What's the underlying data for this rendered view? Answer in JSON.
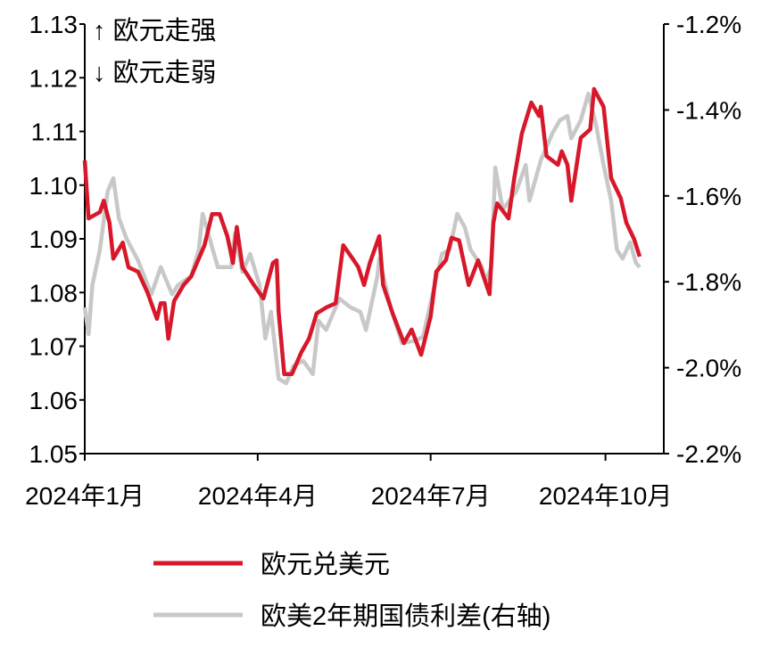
{
  "chart_data": {
    "type": "line",
    "title": "",
    "annotations": [
      "↑ 欧元走强",
      "↓ 欧元走弱"
    ],
    "x_ticks": [
      {
        "date": "2024-01-01",
        "label": "2024年1月"
      },
      {
        "date": "2024-04-01",
        "label": "2024年4月"
      },
      {
        "date": "2024-07-01",
        "label": "2024年7月"
      },
      {
        "date": "2024-10-01",
        "label": "2024年10月"
      }
    ],
    "xlim": [
      "2024-01-01",
      "2024-11-01"
    ],
    "y_left": {
      "lim": [
        1.05,
        1.13
      ],
      "ticks": [
        "1.05",
        "1.06",
        "1.07",
        "1.08",
        "1.09",
        "1.10",
        "1.11",
        "1.12",
        "1.13"
      ]
    },
    "y_right": {
      "lim": [
        -2.2,
        -1.2
      ],
      "unit": "%",
      "ticks": [
        "-2.2%",
        "-2.0%",
        "-1.8%",
        "-1.6%",
        "-1.4%",
        "-1.2%"
      ]
    },
    "grid": false,
    "legend_placement": "bottom",
    "series": [
      {
        "name": "欧元兑美元",
        "axis": "left",
        "color": "#d7182a",
        "points": [
          [
            "2024-01-01",
            1.1046
          ],
          [
            "2024-01-03",
            1.0938
          ],
          [
            "2024-01-09",
            1.095
          ],
          [
            "2024-01-11",
            1.0971
          ],
          [
            "2024-01-14",
            1.093
          ],
          [
            "2024-01-16",
            1.0863
          ],
          [
            "2024-01-21",
            1.0893
          ],
          [
            "2024-01-24",
            1.0847
          ],
          [
            "2024-01-29",
            1.0839
          ],
          [
            "2024-02-03",
            1.08
          ],
          [
            "2024-02-08",
            1.0751
          ],
          [
            "2024-02-10",
            1.078
          ],
          [
            "2024-02-12",
            1.078
          ],
          [
            "2024-02-14",
            1.0714
          ],
          [
            "2024-02-17",
            1.0784
          ],
          [
            "2024-02-22",
            1.0814
          ],
          [
            "2024-02-26",
            1.083
          ],
          [
            "2024-02-29",
            1.0855
          ],
          [
            "2024-03-04",
            1.0888
          ],
          [
            "2024-03-08",
            1.0946
          ],
          [
            "2024-03-12",
            1.0946
          ],
          [
            "2024-03-16",
            1.0905
          ],
          [
            "2024-03-19",
            1.0855
          ],
          [
            "2024-03-21",
            1.0922
          ],
          [
            "2024-03-24",
            1.0847
          ],
          [
            "2024-03-30",
            1.0814
          ],
          [
            "2024-04-04",
            1.0789
          ],
          [
            "2024-04-09",
            1.0855
          ],
          [
            "2024-04-11",
            1.086
          ],
          [
            "2024-04-12",
            1.0764
          ],
          [
            "2024-04-15",
            1.0648
          ],
          [
            "2024-04-19",
            1.0648
          ],
          [
            "2024-04-24",
            1.0689
          ],
          [
            "2024-04-28",
            1.0714
          ],
          [
            "2024-05-02",
            1.0761
          ],
          [
            "2024-05-07",
            1.0772
          ],
          [
            "2024-05-12",
            1.078
          ],
          [
            "2024-05-14",
            1.0834
          ],
          [
            "2024-05-16",
            1.0888
          ],
          [
            "2024-05-21",
            1.0863
          ],
          [
            "2024-05-24",
            1.0847
          ],
          [
            "2024-05-27",
            1.0814
          ],
          [
            "2024-05-30",
            1.0855
          ],
          [
            "2024-06-04",
            1.0905
          ],
          [
            "2024-06-06",
            1.0814
          ],
          [
            "2024-06-11",
            1.0761
          ],
          [
            "2024-06-17",
            1.0706
          ],
          [
            "2024-06-21",
            1.0731
          ],
          [
            "2024-06-26",
            1.0684
          ],
          [
            "2024-07-01",
            1.0756
          ],
          [
            "2024-07-04",
            1.0839
          ],
          [
            "2024-07-09",
            1.086
          ],
          [
            "2024-07-12",
            1.0902
          ],
          [
            "2024-07-16",
            1.0897
          ],
          [
            "2024-07-21",
            1.0814
          ],
          [
            "2024-07-26",
            1.086
          ],
          [
            "2024-08-01",
            1.0797
          ],
          [
            "2024-08-03",
            1.093
          ],
          [
            "2024-08-05",
            1.0966
          ],
          [
            "2024-08-11",
            1.0938
          ],
          [
            "2024-08-14",
            1.1013
          ],
          [
            "2024-08-18",
            1.1096
          ],
          [
            "2024-08-23",
            1.1154
          ],
          [
            "2024-08-27",
            1.1129
          ],
          [
            "2024-08-28",
            1.1146
          ],
          [
            "2024-08-31",
            1.1054
          ],
          [
            "2024-09-06",
            1.1038
          ],
          [
            "2024-09-08",
            1.1063
          ],
          [
            "2024-09-11",
            1.1038
          ],
          [
            "2024-09-13",
            1.0971
          ],
          [
            "2024-09-18",
            1.1088
          ],
          [
            "2024-09-23",
            1.1104
          ],
          [
            "2024-09-25",
            1.1179
          ],
          [
            "2024-09-30",
            1.1146
          ],
          [
            "2024-10-04",
            1.1013
          ],
          [
            "2024-10-09",
            1.0976
          ],
          [
            "2024-10-12",
            1.093
          ],
          [
            "2024-10-16",
            1.09
          ],
          [
            "2024-10-19",
            1.0867
          ]
        ]
      },
      {
        "name": "欧美2年期国债利差(右轴)",
        "axis": "right",
        "color": "#c8c8c8",
        "points": [
          [
            "2024-01-01",
            -1.86
          ],
          [
            "2024-01-03",
            -1.922
          ],
          [
            "2024-01-05",
            -1.808
          ],
          [
            "2024-01-09",
            -1.725
          ],
          [
            "2024-01-13",
            -1.59
          ],
          [
            "2024-01-16",
            -1.559
          ],
          [
            "2024-01-19",
            -1.652
          ],
          [
            "2024-01-23",
            -1.7
          ],
          [
            "2024-01-29",
            -1.75
          ],
          [
            "2024-02-05",
            -1.829
          ],
          [
            "2024-02-10",
            -1.766
          ],
          [
            "2024-02-16",
            -1.829
          ],
          [
            "2024-02-19",
            -1.808
          ],
          [
            "2024-02-26",
            -1.787
          ],
          [
            "2024-03-01",
            -1.725
          ],
          [
            "2024-03-03",
            -1.642
          ],
          [
            "2024-03-07",
            -1.704
          ],
          [
            "2024-03-11",
            -1.766
          ],
          [
            "2024-03-18",
            -1.766
          ],
          [
            "2024-03-20",
            -1.688
          ],
          [
            "2024-03-24",
            -1.777
          ],
          [
            "2024-03-28",
            -1.735
          ],
          [
            "2024-04-02",
            -1.808
          ],
          [
            "2024-04-05",
            -1.932
          ],
          [
            "2024-04-08",
            -1.87
          ],
          [
            "2024-04-12",
            -2.026
          ],
          [
            "2024-04-16",
            -2.036
          ],
          [
            "2024-04-20",
            -1.995
          ],
          [
            "2024-04-25",
            -1.984
          ],
          [
            "2024-04-30",
            -2.015
          ],
          [
            "2024-05-03",
            -1.891
          ],
          [
            "2024-05-07",
            -1.912
          ],
          [
            "2024-05-14",
            -1.839
          ],
          [
            "2024-05-20",
            -1.86
          ],
          [
            "2024-05-25",
            -1.87
          ],
          [
            "2024-05-28",
            -1.912
          ],
          [
            "2024-06-03",
            -1.787
          ],
          [
            "2024-06-04",
            -1.746
          ],
          [
            "2024-06-10",
            -1.86
          ],
          [
            "2024-06-16",
            -1.943
          ],
          [
            "2024-06-23",
            -1.937
          ],
          [
            "2024-06-27",
            -1.928
          ],
          [
            "2024-07-02",
            -1.829
          ],
          [
            "2024-07-07",
            -1.735
          ],
          [
            "2024-07-11",
            -1.725
          ],
          [
            "2024-07-15",
            -1.642
          ],
          [
            "2024-07-19",
            -1.673
          ],
          [
            "2024-07-22",
            -1.725
          ],
          [
            "2024-07-28",
            -1.766
          ],
          [
            "2024-07-30",
            -1.798
          ],
          [
            "2024-08-02",
            -1.766
          ],
          [
            "2024-08-04",
            -1.534
          ],
          [
            "2024-08-08",
            -1.632
          ],
          [
            "2024-08-15",
            -1.59
          ],
          [
            "2024-08-20",
            -1.528
          ],
          [
            "2024-08-22",
            -1.611
          ],
          [
            "2024-08-28",
            -1.517
          ],
          [
            "2024-09-03",
            -1.455
          ],
          [
            "2024-09-07",
            -1.424
          ],
          [
            "2024-09-11",
            -1.414
          ],
          [
            "2024-09-13",
            -1.466
          ],
          [
            "2024-09-18",
            -1.424
          ],
          [
            "2024-09-22",
            -1.362
          ],
          [
            "2024-09-26",
            -1.434
          ],
          [
            "2024-09-30",
            -1.528
          ],
          [
            "2024-10-04",
            -1.611
          ],
          [
            "2024-10-07",
            -1.725
          ],
          [
            "2024-10-10",
            -1.746
          ],
          [
            "2024-10-14",
            -1.708
          ],
          [
            "2024-10-17",
            -1.756
          ],
          [
            "2024-10-19",
            -1.766
          ]
        ]
      }
    ]
  }
}
